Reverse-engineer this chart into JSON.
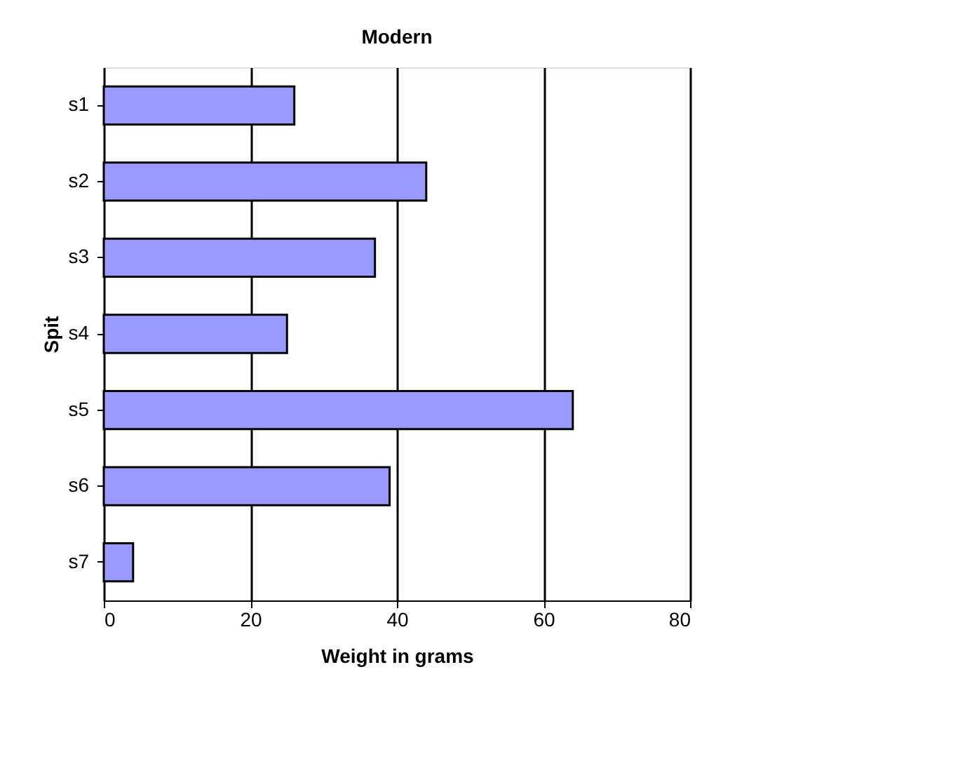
{
  "chart_data": {
    "type": "bar",
    "orientation": "horizontal",
    "title": "Modern",
    "xlabel": "Weight in grams",
    "ylabel": "Spit",
    "categories": [
      "s1",
      "s2",
      "s3",
      "s4",
      "s5",
      "s6",
      "s7"
    ],
    "values": [
      26,
      44,
      37,
      25,
      64,
      39,
      4
    ],
    "color": "#9999ff",
    "xlim": [
      0,
      80
    ],
    "xticks": [
      0,
      20,
      40,
      60,
      80
    ],
    "grid": "x"
  }
}
